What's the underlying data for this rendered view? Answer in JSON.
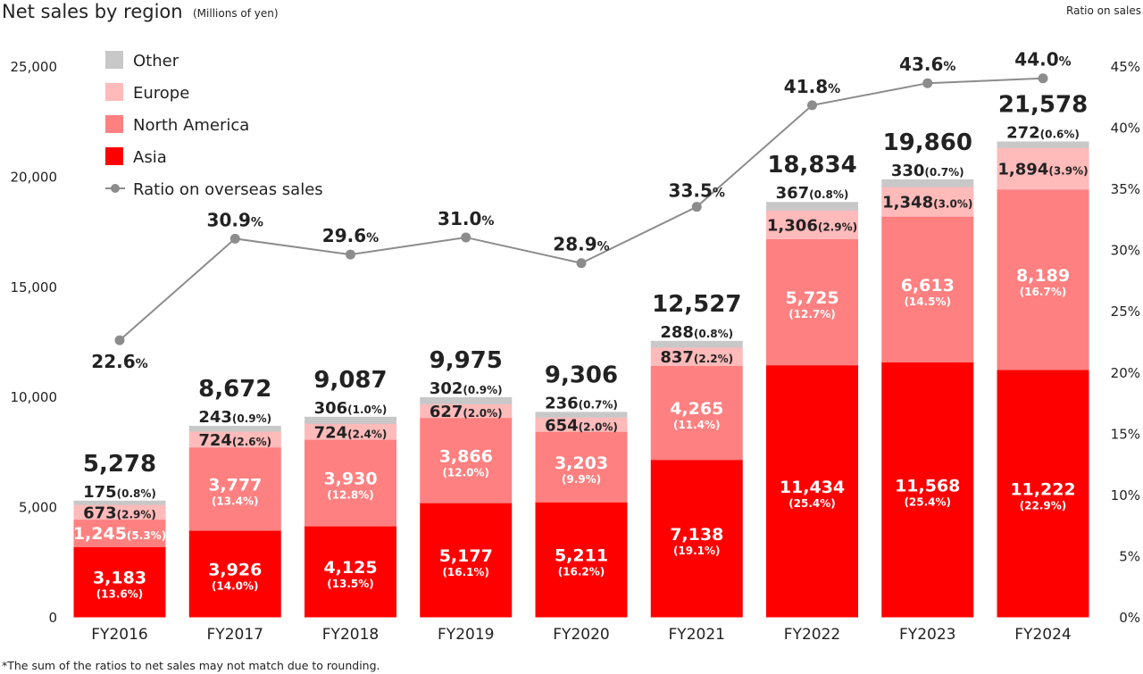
{
  "header": {
    "title": "Net sales by region",
    "unit": "(Millions of yen)",
    "right_axis_title": "Ratio on sales"
  },
  "footnote": "*The sum of the ratios to net sales may not match due to rounding.",
  "colors": {
    "asia": "#ff0000",
    "north_america": "#ff8080",
    "europe": "#ffbaba",
    "other": "#c8c8c8",
    "line": "#8c8c8c"
  },
  "chart_data": {
    "type": "bar",
    "stacked": true,
    "title": "Net sales by region",
    "ylabel": "(Millions of yen)",
    "y2label": "Ratio on sales",
    "ylim": [
      0,
      25000
    ],
    "y2lim": [
      0,
      45
    ],
    "y_ticks": [
      "0",
      "5,000",
      "10,000",
      "15,000",
      "20,000",
      "25,000"
    ],
    "y_tick_values": [
      0,
      5000,
      10000,
      15000,
      20000,
      25000
    ],
    "y2_ticks": [
      "0%",
      "5%",
      "10%",
      "15%",
      "20%",
      "25%",
      "30%",
      "35%",
      "40%",
      "45%"
    ],
    "y2_tick_values": [
      0,
      5,
      10,
      15,
      20,
      25,
      30,
      35,
      40,
      45
    ],
    "categories": [
      "FY2016",
      "FY2017",
      "FY2018",
      "FY2019",
      "FY2020",
      "FY2021",
      "FY2022",
      "FY2023",
      "FY2024"
    ],
    "totals": [
      5278,
      8672,
      9087,
      9975,
      9306,
      12527,
      18834,
      19860,
      21578
    ],
    "total_labels": [
      "5,278",
      "8,672",
      "9,087",
      "9,975",
      "9,306",
      "12,527",
      "18,834",
      "19,860",
      "21,578"
    ],
    "series": [
      {
        "name": "Asia",
        "color_key": "asia",
        "values": [
          3183,
          3926,
          4125,
          5177,
          5211,
          7138,
          11434,
          11568,
          11222
        ],
        "value_labels": [
          "3,183",
          "3,926",
          "4,125",
          "5,177",
          "5,211",
          "7,138",
          "11,434",
          "11,568",
          "11,222"
        ],
        "ratio_labels": [
          "(13.6%)",
          "(14.0%)",
          "(13.5%)",
          "(16.1%)",
          "(16.2%)",
          "(19.1%)",
          "(25.4%)",
          "(25.4%)",
          "(22.9%)"
        ]
      },
      {
        "name": "North America",
        "color_key": "north_america",
        "values": [
          1245,
          3777,
          3930,
          3866,
          3203,
          4265,
          5725,
          6613,
          8189
        ],
        "value_labels": [
          "1,245",
          "3,777",
          "3,930",
          "3,866",
          "3,203",
          "4,265",
          "5,725",
          "6,613",
          "8,189"
        ],
        "ratio_labels": [
          "(5.3%)",
          "(13.4%)",
          "(12.8%)",
          "(12.0%)",
          "(9.9%)",
          "(11.4%)",
          "(12.7%)",
          "(14.5%)",
          "(16.7%)"
        ]
      },
      {
        "name": "Europe",
        "color_key": "europe",
        "values": [
          673,
          724,
          724,
          627,
          654,
          837,
          1306,
          1348,
          1894
        ],
        "value_labels": [
          "673",
          "724",
          "724",
          "627",
          "654",
          "837",
          "1,306",
          "1,348",
          "1,894"
        ],
        "ratio_labels": [
          "(2.9%)",
          "(2.6%)",
          "(2.4%)",
          "(2.0%)",
          "(2.0%)",
          "(2.2%)",
          "(2.9%)",
          "(3.0%)",
          "(3.9%)"
        ]
      },
      {
        "name": "Other",
        "color_key": "other",
        "values": [
          175,
          243,
          306,
          302,
          236,
          288,
          367,
          330,
          272
        ],
        "value_labels": [
          "175",
          "243",
          "306",
          "302",
          "236",
          "288",
          "367",
          "330",
          "272"
        ],
        "ratio_labels": [
          "(0.8%)",
          "(0.9%)",
          "(1.0%)",
          "(0.9%)",
          "(0.7%)",
          "(0.8%)",
          "(0.8%)",
          "(0.7%)",
          "(0.6%)"
        ]
      }
    ],
    "line_series": {
      "name": "Ratio on overseas sales",
      "axis": "right",
      "values": [
        22.6,
        30.9,
        29.6,
        31.0,
        28.9,
        33.5,
        41.8,
        43.6,
        44.0
      ],
      "value_labels": [
        "22.6",
        "30.9",
        "29.6",
        "31.0",
        "28.9",
        "33.5",
        "41.8",
        "43.6",
        "44.0"
      ],
      "unit": "%"
    },
    "legend": [
      "Other",
      "Europe",
      "North America",
      "Asia",
      "Ratio on overseas sales"
    ],
    "legend_position": "top-left"
  }
}
